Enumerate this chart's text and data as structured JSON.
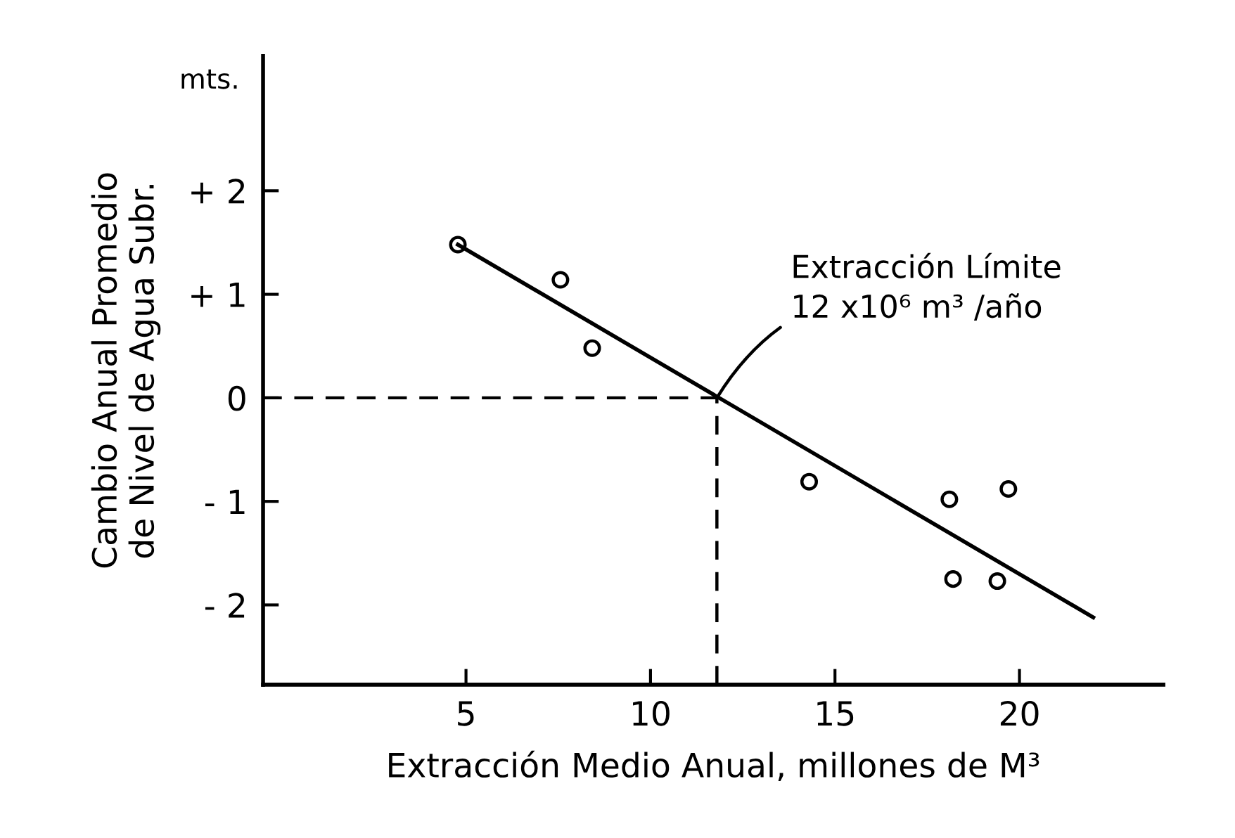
{
  "chart_data": {
    "type": "scatter",
    "xlabel": "Extracción Medio Anual, millones de M³",
    "ylabel": "Cambio Anual Promedio\nde Nivel de Agua Subr.",
    "series": [
      {
        "color": "#000000",
        "marker": "circle",
        "x": [
          4.78,
          7.56,
          8.42,
          14.3,
          18.1,
          19.7,
          18.2,
          19.4
        ],
        "values": [
          1.48,
          1.14,
          0.48,
          -0.81,
          -0.98,
          -0.88,
          -1.75,
          -1.77
        ]
      },
      {
        "type": "line",
        "color": "#000000",
        "marker": "none",
        "line_style": "solid",
        "x": [
          4.78,
          22.0
        ],
        "values": [
          1.48,
          -2.12
        ]
      }
    ],
    "xlim": [
      -0.5,
      23.9
    ],
    "ylim": [
      -2.77,
      3.3
    ],
    "xticks": [
      5,
      10,
      15,
      20
    ],
    "yticks": [
      {
        "value": 2,
        "label": "+ 2"
      },
      {
        "value": 1,
        "label": "+ 1"
      },
      0,
      {
        "value": -1,
        "label": "- 1"
      },
      {
        "value": -2,
        "label": "- 2"
      }
    ],
    "ref_lines": [
      {
        "axis": "y",
        "value": 0,
        "color": "#000000",
        "line_style": "dashed"
      },
      {
        "axis": "x",
        "value": 11.8,
        "color": "#000000",
        "line_style": "dashed"
      }
    ],
    "annotations": [
      {
        "text": "Extracción Límite\n12 x10⁶ m³ /año",
        "x": 11.8,
        "y": 0
      },
      "mts."
    ],
    "grid": false,
    "legend": false
  }
}
